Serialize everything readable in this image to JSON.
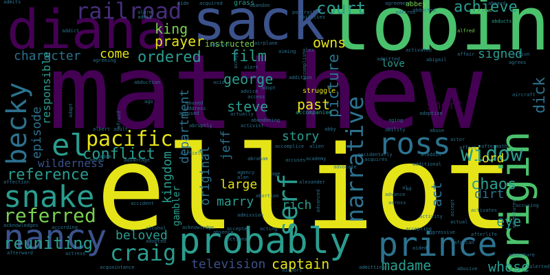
{
  "background_color": "#000000",
  "palette": {
    "yellow": "#e5e419",
    "green": "#4ac16d",
    "light_green": "#7ad151",
    "teal": "#2a9d8f",
    "blue_teal": "#2c728e",
    "blue": "#3b528b",
    "indigo": "#472d7b",
    "purple": "#440154"
  },
  "words": [
    {
      "text": "matthew",
      "color": "#440154"
    },
    {
      "text": "elliot",
      "color": "#e5e419"
    },
    {
      "text": "tobin",
      "color": "#4ac16d"
    },
    {
      "text": "sack",
      "color": "#3b528b"
    },
    {
      "text": "diana",
      "color": "#440154"
    },
    {
      "text": "probably",
      "color": "#2a9d8f"
    },
    {
      "text": "prince",
      "color": "#2c728e"
    },
    {
      "text": "nancy",
      "color": "#3b528b"
    },
    {
      "text": "snake",
      "color": "#2a9d8f"
    },
    {
      "text": "origin",
      "color": "#4ac16d"
    },
    {
      "text": "ross",
      "color": "#2c728e"
    },
    {
      "text": "narrative",
      "color": "#2c728e"
    },
    {
      "text": "becky",
      "color": "#2c728e"
    },
    {
      "text": "el",
      "color": "#2a9d8f"
    },
    {
      "text": "pacific",
      "color": "#e5e419"
    },
    {
      "text": "railroad",
      "color": "#472d7b"
    },
    {
      "text": "craig",
      "color": "#2a9d8f"
    },
    {
      "text": "referred",
      "color": "#7ad151"
    },
    {
      "text": "serf",
      "color": "#2a9d8f"
    },
    {
      "text": "widow",
      "color": "#2a9d8f"
    },
    {
      "text": "reuniting",
      "color": "#2a9d8f"
    },
    {
      "text": "conflict",
      "color": "#2a9d8f"
    },
    {
      "text": "court",
      "color": "#2a9d8f"
    },
    {
      "text": "achieve",
      "color": "#2a9d8f"
    },
    {
      "text": "owns",
      "color": "#e5e419"
    },
    {
      "text": "character",
      "color": "#2c728e"
    },
    {
      "text": "ordered",
      "color": "#2a9d8f"
    },
    {
      "text": "picture",
      "color": "#2c728e"
    },
    {
      "text": "kingdom",
      "color": "#2a9d8f"
    },
    {
      "text": "gambler",
      "color": "#2a9d8f"
    },
    {
      "text": "original",
      "color": "#2c728e"
    },
    {
      "text": "department",
      "color": "#2c728e"
    },
    {
      "text": "chaos",
      "color": "#2a9d8f"
    },
    {
      "text": "beloved",
      "color": "#2a9d8f"
    },
    {
      "text": "captain",
      "color": "#e5e419"
    },
    {
      "text": "madame",
      "color": "#2a9d8f"
    },
    {
      "text": "television",
      "color": "#3b528b"
    },
    {
      "text": "whose",
      "color": "#2a9d8f"
    },
    {
      "text": "reference",
      "color": "#2a9d8f"
    },
    {
      "text": "wilderness",
      "color": "#3b528b"
    },
    {
      "text": "episode",
      "color": "#2c728e"
    },
    {
      "text": "responsible",
      "color": "#2a9d8f"
    },
    {
      "text": "story",
      "color": "#2a9d8f"
    },
    {
      "text": "rich",
      "color": "#2a9d8f"
    },
    {
      "text": "marry",
      "color": "#2a9d8f"
    },
    {
      "text": "large",
      "color": "#e5e419"
    },
    {
      "text": "jeff",
      "color": "#2c728e"
    },
    {
      "text": "lord",
      "color": "#e5e419"
    },
    {
      "text": "dirt",
      "color": "#2c728e"
    },
    {
      "text": "act",
      "color": "#2c728e"
    },
    {
      "text": "eye",
      "color": "#2a9d8f"
    },
    {
      "text": "dick",
      "color": "#2c728e"
    },
    {
      "text": "short",
      "color": "#440154"
    },
    {
      "text": "signed",
      "color": "#2a9d8f"
    },
    {
      "text": "love",
      "color": "#2a9d8f"
    },
    {
      "text": "past",
      "color": "#e5e419"
    },
    {
      "text": "steve",
      "color": "#2a9d8f"
    },
    {
      "text": "george",
      "color": "#2a9d8f"
    },
    {
      "text": "film",
      "color": "#2a9d8f"
    },
    {
      "text": "come",
      "color": "#e5e419"
    },
    {
      "text": "prayer",
      "color": "#e5e419"
    },
    {
      "text": "king",
      "color": "#7ad151"
    },
    {
      "text": "instructed",
      "color": "#7ad151"
    },
    {
      "text": "abbey",
      "color": "#7ad151"
    },
    {
      "text": "grass",
      "color": "#2a9d8f"
    },
    {
      "text": "admits",
      "color": "#2c728e"
    },
    {
      "text": "alarm",
      "color": "#2c728e"
    },
    {
      "text": "aide",
      "color": "#2c728e"
    },
    {
      "text": "acquired",
      "color": "#2c728e"
    },
    {
      "text": "aboard",
      "color": "#2c728e"
    },
    {
      "text": "agreement",
      "color": "#2c728e"
    },
    {
      "text": "abducted",
      "color": "#2c728e"
    },
    {
      "text": "addict",
      "color": "#2c728e"
    },
    {
      "text": "alfred",
      "color": "#7ad151"
    },
    {
      "text": "abducts",
      "color": "#2a9d8f"
    },
    {
      "text": "active",
      "color": "#7ad151"
    },
    {
      "text": "abandon",
      "color": "#2c728e"
    },
    {
      "text": "advises",
      "color": "#2c728e"
    },
    {
      "text": "alex",
      "color": "#2c728e"
    },
    {
      "text": "alert",
      "color": "#2c728e"
    },
    {
      "text": "acid",
      "color": "#2c728e"
    },
    {
      "text": "advice",
      "color": "#2c728e"
    },
    {
      "text": "adopt",
      "color": "#2c728e"
    },
    {
      "text": "struggle",
      "color": "#e5e419"
    },
    {
      "text": "activated",
      "color": "#2c728e"
    },
    {
      "text": "accompanied",
      "color": "#2a9d8f"
    },
    {
      "text": "admitted",
      "color": "#2c728e"
    },
    {
      "text": "abigail",
      "color": "#2c728e"
    },
    {
      "text": "affair",
      "color": "#2c728e"
    },
    {
      "text": "action",
      "color": "#2c728e"
    },
    {
      "text": "agrees",
      "color": "#2c728e"
    },
    {
      "text": "abduction",
      "color": "#2c728e"
    },
    {
      "text": "abused",
      "color": "#2c728e"
    },
    {
      "text": "accused",
      "color": "#2c728e"
    },
    {
      "text": "actually",
      "color": "#2c728e"
    },
    {
      "text": "abandoning",
      "color": "#2c728e"
    },
    {
      "text": "aging",
      "color": "#2c728e"
    },
    {
      "text": "adoptive",
      "color": "#2c728e"
    },
    {
      "text": "abruptly",
      "color": "#2c728e"
    },
    {
      "text": "activist",
      "color": "#2c728e"
    },
    {
      "text": "abby",
      "color": "#2c728e"
    },
    {
      "text": "ability",
      "color": "#2c728e"
    },
    {
      "text": "abuse",
      "color": "#2c728e"
    },
    {
      "text": "actor",
      "color": "#2c728e"
    },
    {
      "text": "aftermath",
      "color": "#2c728e"
    },
    {
      "text": "affect",
      "color": "#2c728e"
    },
    {
      "text": "albert",
      "color": "#2c728e"
    },
    {
      "text": "adult",
      "color": "#2c728e"
    },
    {
      "text": "abraham",
      "color": "#2c728e"
    },
    {
      "text": "academy",
      "color": "#2c728e"
    },
    {
      "text": "accidentally",
      "color": "#2c728e"
    },
    {
      "text": "acquires",
      "color": "#2c728e"
    },
    {
      "text": "aladdin",
      "color": "#2c728e"
    },
    {
      "text": "additional",
      "color": "#2c728e"
    },
    {
      "text": "advantage",
      "color": "#2c728e"
    },
    {
      "text": "airfield",
      "color": "#2c728e"
    },
    {
      "text": "agency",
      "color": "#2c728e"
    },
    {
      "text": "affection",
      "color": "#2c728e"
    },
    {
      "text": "accident",
      "color": "#2c728e"
    },
    {
      "text": "alcohol",
      "color": "#2c728e"
    },
    {
      "text": "adopted",
      "color": "#2c728e"
    },
    {
      "text": "acknowledge",
      "color": "#2c728e"
    },
    {
      "text": "acknowledges",
      "color": "#2c728e"
    },
    {
      "text": "absence",
      "color": "#2c728e"
    },
    {
      "text": "accepted",
      "color": "#2c728e"
    },
    {
      "text": "acting",
      "color": "#2c728e"
    },
    {
      "text": "afterward",
      "color": "#2c728e"
    },
    {
      "text": "actress",
      "color": "#2c728e"
    },
    {
      "text": "acquaintance",
      "color": "#2c728e"
    },
    {
      "text": "airport",
      "color": "#2c728e"
    },
    {
      "text": "admitting",
      "color": "#2c728e"
    },
    {
      "text": "african",
      "color": "#2c728e"
    },
    {
      "text": "abusive",
      "color": "#2c728e"
    },
    {
      "text": "adventure",
      "color": "#2c728e"
    },
    {
      "text": "alerted",
      "color": "#2c728e"
    },
    {
      "text": "aggressive",
      "color": "#2c728e"
    },
    {
      "text": "afterlife",
      "color": "#2c728e"
    },
    {
      "text": "accepting",
      "color": "#2c728e"
    },
    {
      "text": "activity",
      "color": "#2c728e"
    },
    {
      "text": "actual",
      "color": "#2c728e"
    },
    {
      "text": "activates",
      "color": "#2c728e"
    },
    {
      "text": "aided",
      "color": "#2c728e"
    },
    {
      "text": "across",
      "color": "#2c728e"
    },
    {
      "text": "accusing",
      "color": "#2c728e"
    },
    {
      "text": "advanced",
      "color": "#2c728e"
    },
    {
      "text": "alexander",
      "color": "#2c728e"
    },
    {
      "text": "according",
      "color": "#2c728e"
    },
    {
      "text": "access",
      "color": "#2c728e"
    },
    {
      "text": "accepts",
      "color": "#2c728e"
    },
    {
      "text": "accuses",
      "color": "#2c728e"
    },
    {
      "text": "address",
      "color": "#2c728e"
    },
    {
      "text": "ago",
      "color": "#2c728e"
    },
    {
      "text": "age",
      "color": "#2c728e"
    },
    {
      "text": "ad",
      "color": "#2c728e"
    },
    {
      "text": "adventurer",
      "color": "#2c728e"
    },
    {
      "text": "admission",
      "color": "#2c728e"
    },
    {
      "text": "actions",
      "color": "#2c728e"
    },
    {
      "text": "accomplice",
      "color": "#2c728e"
    },
    {
      "text": "addition",
      "color": "#2c728e"
    },
    {
      "text": "afraid",
      "color": "#2c728e"
    },
    {
      "text": "abortion",
      "color": "#2c728e"
    },
    {
      "text": "advance",
      "color": "#2c728e"
    },
    {
      "text": "ahead",
      "color": "#2c728e"
    },
    {
      "text": "accept",
      "color": "#2c728e"
    },
    {
      "text": "airplane",
      "color": "#2c728e"
    },
    {
      "text": "alan",
      "color": "#2c728e"
    },
    {
      "text": "agreeing",
      "color": "#2c728e"
    },
    {
      "text": "aircraft",
      "color": "#2c728e"
    },
    {
      "text": "accomplish",
      "color": "#2c728e"
    },
    {
      "text": "portrait",
      "color": "#2c728e"
    },
    {
      "text": "aiming",
      "color": "#2c728e"
    },
    {
      "text": "al",
      "color": "#2c728e"
    },
    {
      "text": "adapt",
      "color": "#2c728e"
    },
    {
      "text": "alien",
      "color": "#2c728e"
    },
    {
      "text": "admires",
      "color": "#2c728e"
    },
    {
      "text": "adam",
      "color": "#2c728e"
    },
    {
      "text": "advocate",
      "color": "#2c728e"
    },
    {
      "text": "abilities",
      "color": "#2c728e"
    },
    {
      "text": "admit",
      "color": "#2c728e"
    }
  ]
}
